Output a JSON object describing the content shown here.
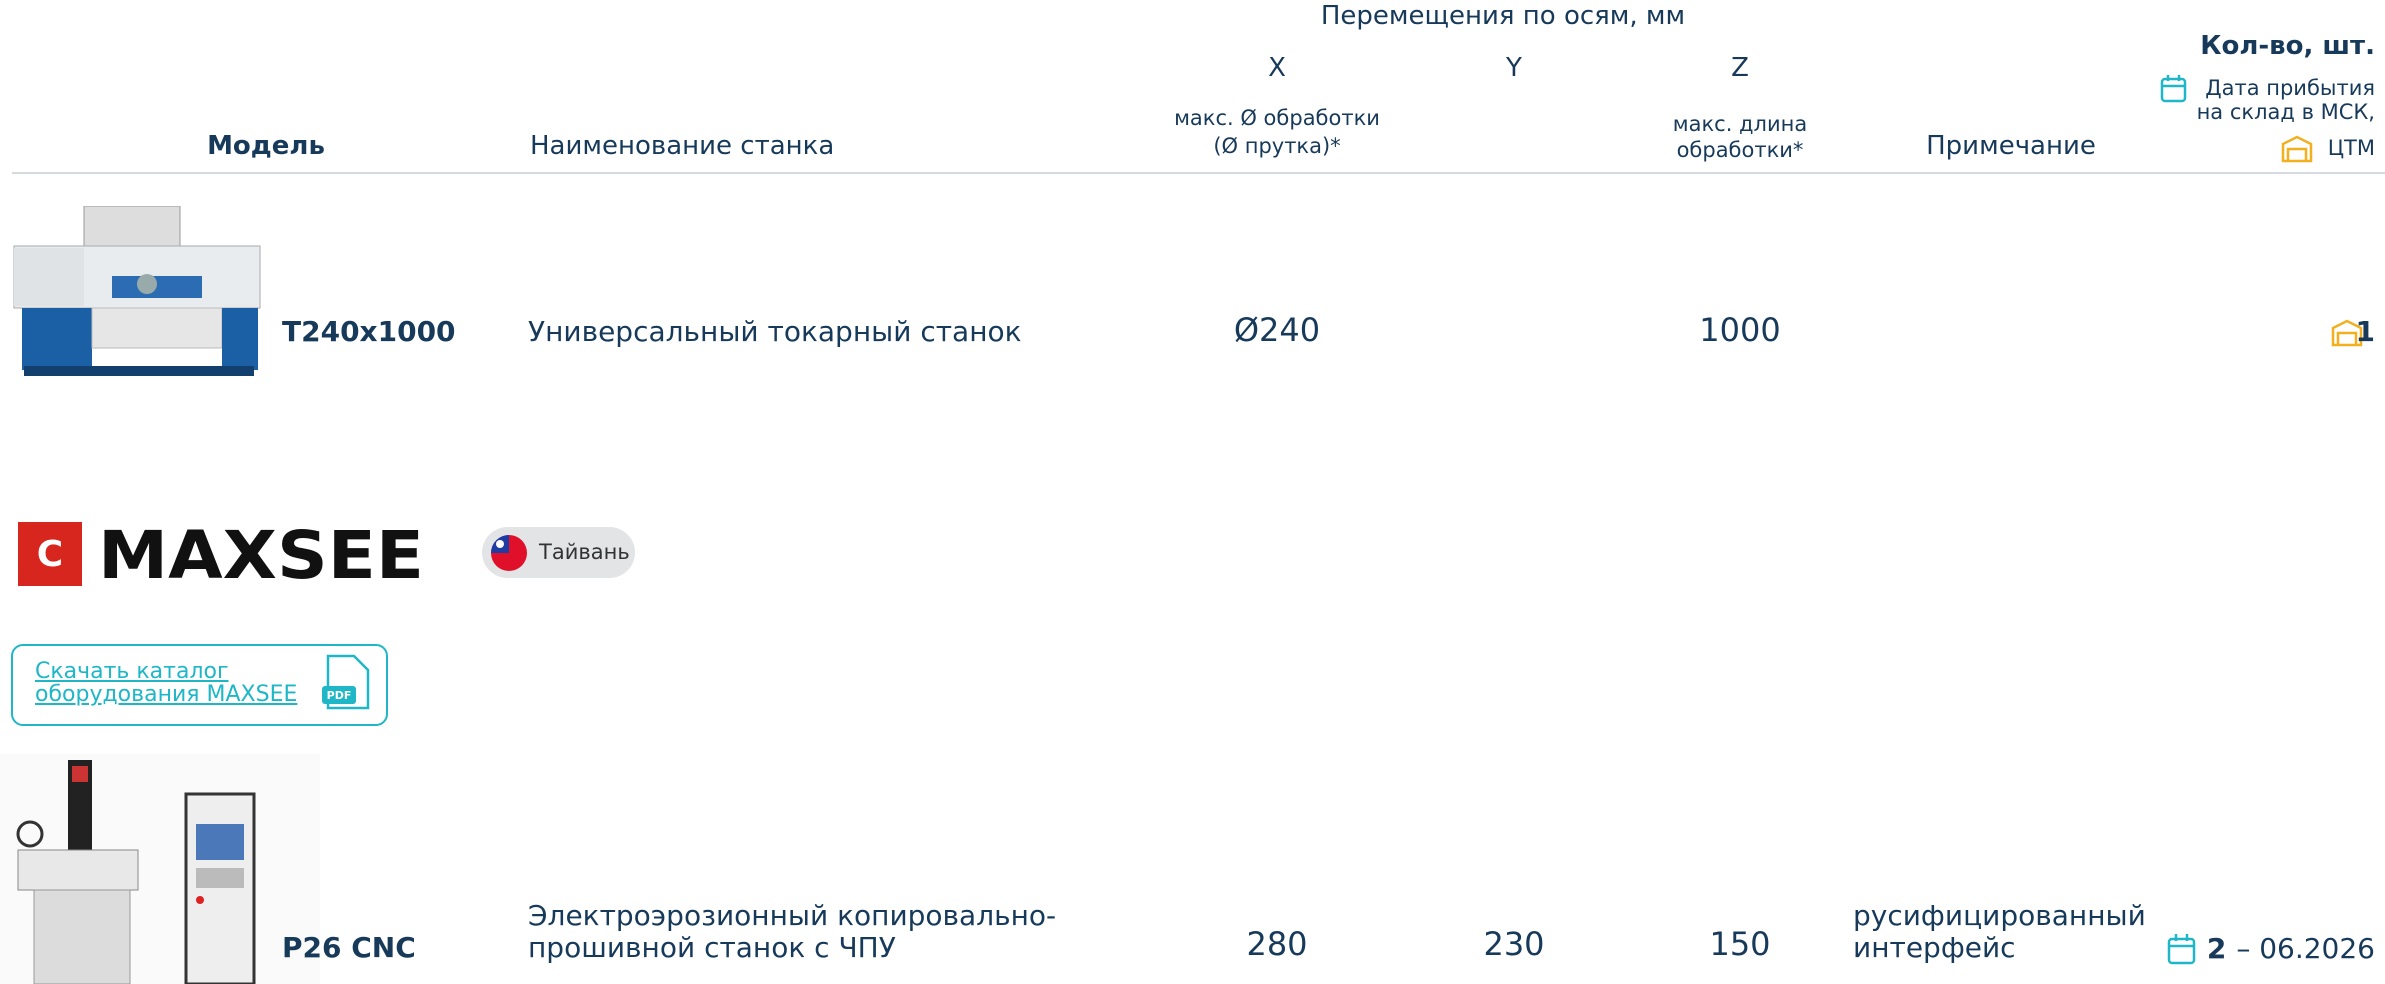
{
  "header": {
    "axes_title": "Перемещения по осям, мм",
    "x": "X",
    "y": "Y",
    "z": "Z",
    "qty": "Кол-во, шт.",
    "date_note": [
      "Дата прибытия",
      "на склад в МСК,"
    ],
    "warehouse": "ЦТМ",
    "model": "Модель",
    "name": "Наименование станка",
    "x_note": [
      "макс. Ø обработки",
      "(Ø прутка)*"
    ],
    "z_note": [
      "макс. длина",
      "обработки*"
    ],
    "remark": "Примечание"
  },
  "rows": [
    {
      "model": "T240x1000",
      "name": "Универсальный токарный станок",
      "x": "Ø240",
      "z": "1000",
      "qty": "1"
    },
    {
      "model": "P26 CNC",
      "name": [
        "Электроэрозионный копировально-",
        "прошивной станок с ЧПУ"
      ],
      "x": "280",
      "y": "230",
      "z": "150",
      "remark": [
        "русифицированный",
        "интерфейс"
      ],
      "qty": "2",
      "date": "– 06.2026"
    }
  ],
  "brand": {
    "logo": "MAXSEE",
    "country": "Тайвань",
    "catalog": "Скачать каталог оборудования MAXSEE"
  }
}
